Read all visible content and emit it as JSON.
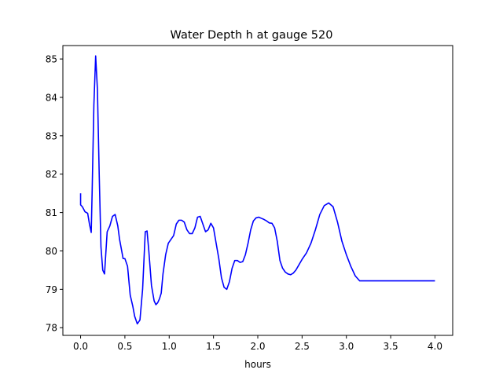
{
  "chart_data": {
    "type": "line",
    "title": "Water Depth h at gauge 520",
    "xlabel": "hours",
    "ylabel": "",
    "xlim": [
      -0.2,
      4.2
    ],
    "ylim": [
      77.8,
      85.35
    ],
    "xticks": [
      0.0,
      0.5,
      1.0,
      1.5,
      2.0,
      2.5,
      3.0,
      3.5,
      4.0
    ],
    "xtick_labels": [
      "0.0",
      "0.5",
      "1.0",
      "1.5",
      "2.0",
      "2.5",
      "3.0",
      "3.5",
      "4.0"
    ],
    "yticks": [
      78,
      79,
      80,
      81,
      82,
      83,
      84,
      85
    ],
    "ytick_labels": [
      "78",
      "79",
      "80",
      "81",
      "82",
      "83",
      "84",
      "85"
    ],
    "grid": false,
    "series": [
      {
        "color": "#0000ff",
        "x": [
          0.0,
          0.0,
          0.02,
          0.05,
          0.08,
          0.1,
          0.12,
          0.13,
          0.15,
          0.17,
          0.19,
          0.21,
          0.23,
          0.25,
          0.27,
          0.3,
          0.33,
          0.36,
          0.39,
          0.42,
          0.44,
          0.46,
          0.48,
          0.5,
          0.53,
          0.56,
          0.59,
          0.61,
          0.64,
          0.67,
          0.7,
          0.73,
          0.75,
          0.77,
          0.8,
          0.83,
          0.85,
          0.87,
          0.89,
          0.91,
          0.93,
          0.96,
          0.99,
          1.02,
          1.05,
          1.08,
          1.11,
          1.14,
          1.17,
          1.2,
          1.23,
          1.26,
          1.29,
          1.32,
          1.35,
          1.38,
          1.41,
          1.44,
          1.47,
          1.5,
          1.53,
          1.56,
          1.59,
          1.62,
          1.65,
          1.68,
          1.71,
          1.74,
          1.77,
          1.8,
          1.83,
          1.86,
          1.89,
          1.92,
          1.95,
          1.98,
          2.01,
          2.04,
          2.07,
          2.1,
          2.13,
          2.16,
          2.19,
          2.22,
          2.25,
          2.28,
          2.31,
          2.34,
          2.37,
          2.4,
          2.43,
          2.46,
          2.5,
          2.55,
          2.6,
          2.65,
          2.7,
          2.75,
          2.8,
          2.85,
          2.9,
          2.95,
          3.0,
          3.05,
          3.1,
          3.15,
          3.2,
          3.25,
          3.3,
          3.35,
          3.4,
          3.45,
          3.5,
          3.55,
          3.6,
          3.65,
          3.7,
          3.75,
          3.8,
          3.85,
          3.9,
          3.95,
          4.0
        ],
        "y": [
          81.5,
          81.2,
          81.15,
          81.02,
          80.98,
          80.7,
          80.48,
          81.5,
          83.8,
          85.08,
          84.2,
          82.0,
          80.1,
          79.5,
          79.4,
          80.5,
          80.65,
          80.9,
          80.95,
          80.65,
          80.3,
          80.05,
          79.8,
          79.8,
          79.6,
          78.85,
          78.55,
          78.3,
          78.1,
          78.2,
          79.0,
          80.5,
          80.52,
          80.0,
          79.1,
          78.7,
          78.6,
          78.65,
          78.75,
          78.9,
          79.4,
          79.9,
          80.2,
          80.3,
          80.4,
          80.7,
          80.8,
          80.8,
          80.75,
          80.55,
          80.45,
          80.45,
          80.6,
          80.88,
          80.9,
          80.7,
          80.5,
          80.55,
          80.72,
          80.6,
          80.2,
          79.8,
          79.3,
          79.05,
          79.0,
          79.2,
          79.55,
          79.75,
          79.75,
          79.7,
          79.72,
          79.9,
          80.2,
          80.55,
          80.78,
          80.86,
          80.88,
          80.85,
          80.82,
          80.78,
          80.73,
          80.72,
          80.6,
          80.25,
          79.75,
          79.55,
          79.45,
          79.4,
          79.38,
          79.42,
          79.5,
          79.62,
          79.78,
          79.95,
          80.2,
          80.55,
          80.95,
          81.18,
          81.25,
          81.15,
          80.75,
          80.25,
          79.9,
          79.6,
          79.35,
          79.22,
          79.22,
          79.22,
          79.22,
          79.22,
          79.22,
          79.22,
          79.22,
          79.22,
          79.22,
          79.22,
          79.22,
          79.22,
          79.22,
          79.22,
          79.22,
          79.22,
          79.22
        ]
      }
    ]
  }
}
